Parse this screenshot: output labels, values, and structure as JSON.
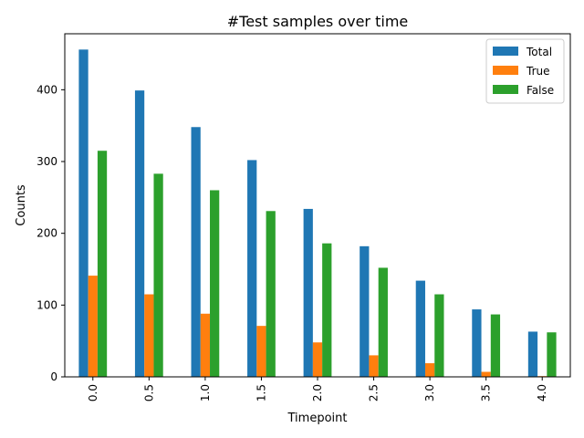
{
  "chart_data": {
    "type": "bar",
    "title": "#Test samples over time",
    "xlabel": "Timepoint",
    "ylabel": "Counts",
    "categories": [
      "0.0",
      "0.5",
      "1.0",
      "1.5",
      "2.0",
      "2.5",
      "3.0",
      "3.5",
      "4.0"
    ],
    "series": [
      {
        "name": "Total",
        "color": "#1f77b4",
        "values": [
          456,
          399,
          348,
          302,
          234,
          182,
          134,
          94,
          63
        ]
      },
      {
        "name": "True",
        "color": "#ff7f0e",
        "values": [
          141,
          115,
          88,
          71,
          48,
          30,
          19,
          7,
          1
        ]
      },
      {
        "name": "False",
        "color": "#2ca02c",
        "values": [
          315,
          283,
          260,
          231,
          186,
          152,
          115,
          87,
          62
        ]
      }
    ],
    "yticks": [
      "0",
      "100",
      "200",
      "300",
      "400"
    ],
    "ytick_values": [
      0,
      100,
      200,
      300,
      400
    ],
    "ylim": [
      0,
      478
    ],
    "grid": false,
    "legend_position": "top-right"
  }
}
